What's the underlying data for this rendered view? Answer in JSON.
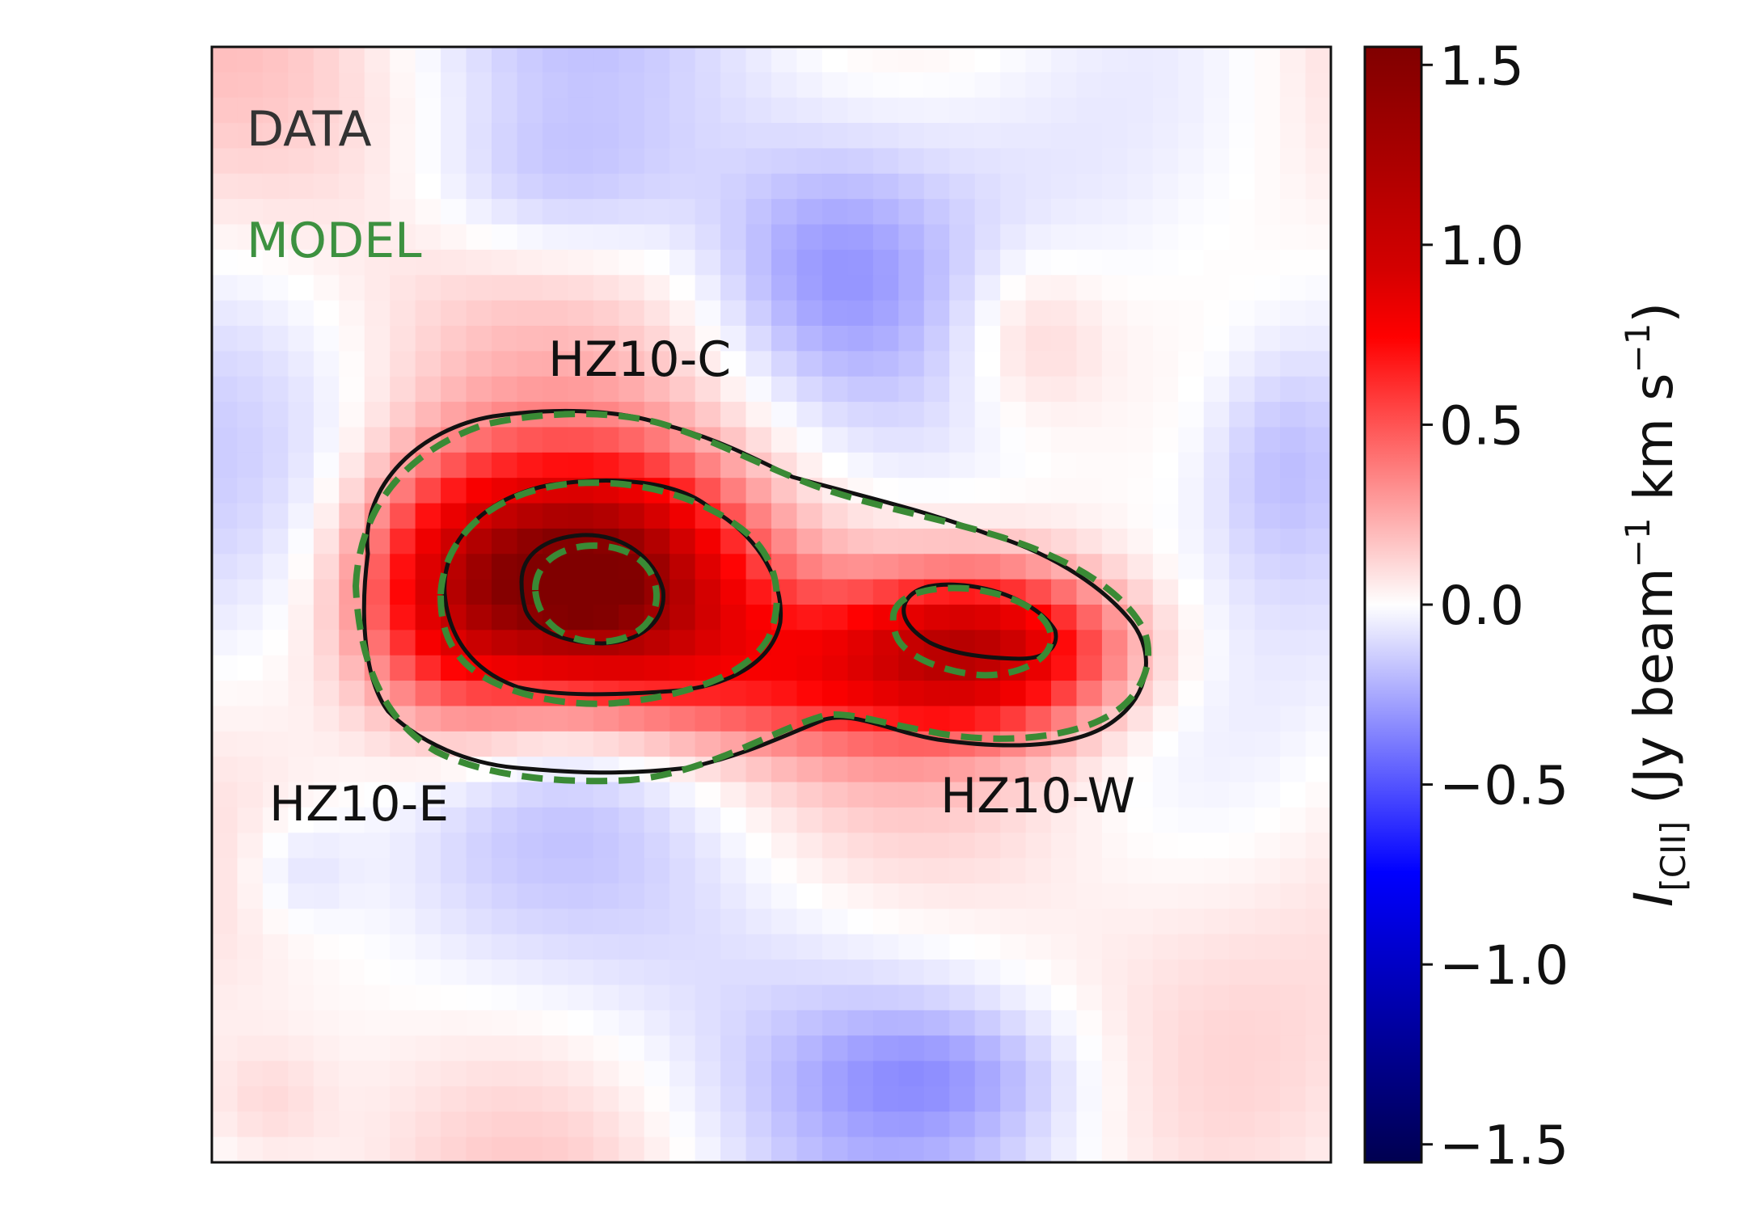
{
  "chart_data": {
    "type": "heatmap",
    "title": "",
    "xlabel": "",
    "ylabel": "",
    "colormap": "seismic",
    "colorbar": {
      "label_main": "I",
      "label_sub": "[CII]",
      "label_units": "(Jy beam",
      "label_units_b": "km s",
      "label_exp": "−1",
      "label_close": ")",
      "vmin": -1.55,
      "vmax": 1.55,
      "ticks": [
        1.5,
        1.0,
        0.5,
        0.0,
        -0.5,
        -1.0,
        -1.5
      ],
      "tick_labels": [
        "1.5",
        "1.0",
        "0.5",
        "0.0",
        "−0.5",
        "−1.0",
        "−1.5"
      ]
    },
    "grid_size": 44,
    "sources": [
      {
        "name": "HZ10-C",
        "label": "HZ10-C",
        "x": 0.34,
        "y": 0.48,
        "peak": 1.55
      },
      {
        "name": "HZ10-E",
        "label": "HZ10-E",
        "x": 0.21,
        "y": 0.5,
        "peak": 0.65
      },
      {
        "name": "HZ10-W",
        "label": "HZ10-W",
        "x": 0.69,
        "y": 0.54,
        "peak": 0.95
      }
    ],
    "legend": [
      {
        "text": "DATA",
        "color": "#333333",
        "linestyle": "solid"
      },
      {
        "text": "MODEL",
        "color": "#3d9140",
        "linestyle": "dashed"
      }
    ],
    "contour_levels": [
      0.5,
      1.0,
      1.4
    ],
    "colors": {
      "data_contour": "#111111",
      "model_contour": "#3a8a35"
    }
  }
}
